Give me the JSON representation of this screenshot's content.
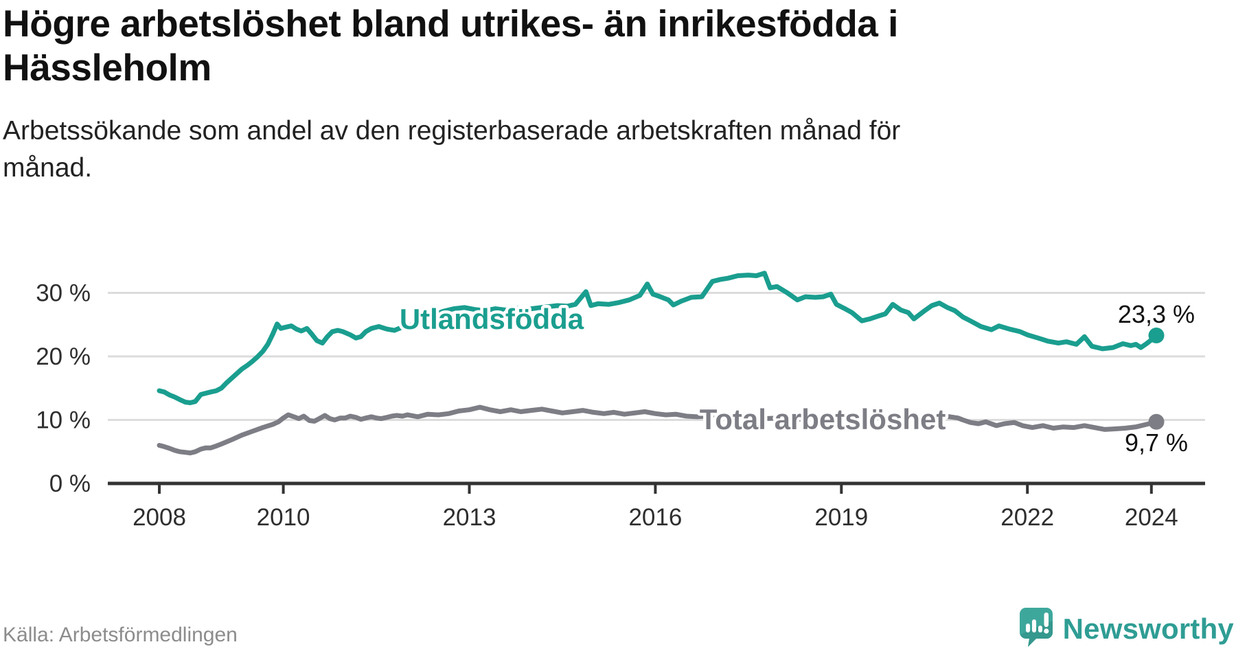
{
  "header": {
    "title_lines": [
      "Högre arbetslöshet bland utrikes- än inrikesfödda i",
      "Hässleholm"
    ],
    "subtitle_lines": [
      "Arbetssökande som andel av den registerbaserade arbetskraften månad för",
      "månad."
    ]
  },
  "footer": {
    "source": "Källa: Arbetsförmedlingen",
    "brand": "Newsworthy",
    "brand_color": "#2f9d94"
  },
  "chart_data": {
    "type": "line",
    "title": "Högre arbetslöshet bland utrikes- än inrikesfödda i Hässleholm",
    "xlabel": "",
    "ylabel": "",
    "unit": "%",
    "grid": "horizontal",
    "x_range": [
      2007.3,
      2024.9
    ],
    "y_range": [
      0,
      34
    ],
    "y_axis": {
      "ticks": [
        {
          "label": "30 %",
          "value": 30
        },
        {
          "label": "20 %",
          "value": 20
        },
        {
          "label": "10 %",
          "value": 10
        },
        {
          "label": "0 %",
          "value": 0
        }
      ]
    },
    "x_axis": {
      "ticks": [
        {
          "label": "2008",
          "year": 2008
        },
        {
          "label": "2010",
          "year": 2010
        },
        {
          "label": "2013",
          "year": 2013
        },
        {
          "label": "2016",
          "year": 2016
        },
        {
          "label": "2019",
          "year": 2019
        },
        {
          "label": "2022",
          "year": 2022
        },
        {
          "label": "2024",
          "year": 2024
        }
      ]
    },
    "series": [
      {
        "name": "Utlandsfödda",
        "color": "#1a9e8f",
        "end_label": "23,3 %",
        "end_value": 23.3,
        "points": [
          [
            2008.0,
            14.6
          ],
          [
            2008.08,
            14.4
          ],
          [
            2008.17,
            13.9
          ],
          [
            2008.25,
            13.6
          ],
          [
            2008.33,
            13.2
          ],
          [
            2008.42,
            12.8
          ],
          [
            2008.5,
            12.7
          ],
          [
            2008.58,
            12.9
          ],
          [
            2008.67,
            14.0
          ],
          [
            2008.75,
            14.2
          ],
          [
            2008.83,
            14.4
          ],
          [
            2008.92,
            14.6
          ],
          [
            2009.0,
            15.0
          ],
          [
            2009.08,
            15.8
          ],
          [
            2009.17,
            16.6
          ],
          [
            2009.25,
            17.3
          ],
          [
            2009.33,
            18.0
          ],
          [
            2009.42,
            18.6
          ],
          [
            2009.5,
            19.2
          ],
          [
            2009.58,
            19.9
          ],
          [
            2009.67,
            20.8
          ],
          [
            2009.75,
            21.9
          ],
          [
            2009.83,
            23.5
          ],
          [
            2009.9,
            25.1
          ],
          [
            2009.96,
            24.4
          ],
          [
            2010.04,
            24.6
          ],
          [
            2010.13,
            24.8
          ],
          [
            2010.21,
            24.3
          ],
          [
            2010.29,
            24.0
          ],
          [
            2010.38,
            24.4
          ],
          [
            2010.46,
            23.5
          ],
          [
            2010.54,
            22.5
          ],
          [
            2010.63,
            22.1
          ],
          [
            2010.71,
            23.1
          ],
          [
            2010.79,
            23.9
          ],
          [
            2010.88,
            24.1
          ],
          [
            2010.96,
            23.9
          ],
          [
            2011.08,
            23.4
          ],
          [
            2011.17,
            22.9
          ],
          [
            2011.25,
            23.1
          ],
          [
            2011.33,
            23.9
          ],
          [
            2011.42,
            24.4
          ],
          [
            2011.54,
            24.7
          ],
          [
            2011.67,
            24.3
          ],
          [
            2011.79,
            24.1
          ],
          [
            2011.92,
            24.6
          ],
          [
            2012.08,
            25.0
          ],
          [
            2012.25,
            25.7
          ],
          [
            2012.42,
            26.5
          ],
          [
            2012.58,
            27.1
          ],
          [
            2012.75,
            27.5
          ],
          [
            2012.92,
            27.7
          ],
          [
            2013.08,
            27.4
          ],
          [
            2013.25,
            27.2
          ],
          [
            2013.42,
            27.5
          ],
          [
            2013.58,
            27.3
          ],
          [
            2013.75,
            27.6
          ],
          [
            2013.92,
            27.4
          ],
          [
            2014.08,
            27.6
          ],
          [
            2014.25,
            27.8
          ],
          [
            2014.42,
            28.0
          ],
          [
            2014.58,
            27.9
          ],
          [
            2014.71,
            28.2
          ],
          [
            2014.88,
            30.2
          ],
          [
            2014.96,
            28.0
          ],
          [
            2015.08,
            28.3
          ],
          [
            2015.25,
            28.2
          ],
          [
            2015.42,
            28.5
          ],
          [
            2015.58,
            28.9
          ],
          [
            2015.75,
            29.6
          ],
          [
            2015.87,
            31.4
          ],
          [
            2015.96,
            29.8
          ],
          [
            2016.08,
            29.4
          ],
          [
            2016.21,
            28.9
          ],
          [
            2016.29,
            28.1
          ],
          [
            2016.42,
            28.7
          ],
          [
            2016.58,
            29.3
          ],
          [
            2016.75,
            29.4
          ],
          [
            2016.92,
            31.8
          ],
          [
            2017.04,
            32.1
          ],
          [
            2017.17,
            32.3
          ],
          [
            2017.33,
            32.7
          ],
          [
            2017.5,
            32.8
          ],
          [
            2017.63,
            32.7
          ],
          [
            2017.76,
            33.1
          ],
          [
            2017.85,
            30.8
          ],
          [
            2017.96,
            31.0
          ],
          [
            2018.13,
            30.0
          ],
          [
            2018.29,
            28.9
          ],
          [
            2018.42,
            29.4
          ],
          [
            2018.58,
            29.3
          ],
          [
            2018.71,
            29.4
          ],
          [
            2018.83,
            29.8
          ],
          [
            2018.92,
            28.2
          ],
          [
            2019.04,
            27.6
          ],
          [
            2019.17,
            26.9
          ],
          [
            2019.33,
            25.6
          ],
          [
            2019.46,
            25.9
          ],
          [
            2019.58,
            26.3
          ],
          [
            2019.71,
            26.7
          ],
          [
            2019.83,
            28.2
          ],
          [
            2019.96,
            27.3
          ],
          [
            2020.08,
            26.9
          ],
          [
            2020.17,
            25.9
          ],
          [
            2020.33,
            27.1
          ],
          [
            2020.46,
            28.0
          ],
          [
            2020.58,
            28.4
          ],
          [
            2020.71,
            27.7
          ],
          [
            2020.83,
            27.2
          ],
          [
            2020.96,
            26.2
          ],
          [
            2021.08,
            25.6
          ],
          [
            2021.25,
            24.7
          ],
          [
            2021.42,
            24.2
          ],
          [
            2021.54,
            24.8
          ],
          [
            2021.71,
            24.3
          ],
          [
            2021.88,
            23.9
          ],
          [
            2022.0,
            23.4
          ],
          [
            2022.17,
            22.9
          ],
          [
            2022.33,
            22.4
          ],
          [
            2022.5,
            22.1
          ],
          [
            2022.63,
            22.3
          ],
          [
            2022.79,
            21.9
          ],
          [
            2022.92,
            23.1
          ],
          [
            2023.04,
            21.6
          ],
          [
            2023.21,
            21.2
          ],
          [
            2023.38,
            21.4
          ],
          [
            2023.54,
            22.0
          ],
          [
            2023.67,
            21.7
          ],
          [
            2023.75,
            21.9
          ],
          [
            2023.83,
            21.4
          ],
          [
            2023.92,
            22.0
          ],
          [
            2024.0,
            22.6
          ],
          [
            2024.08,
            23.3
          ]
        ]
      },
      {
        "name": "Total arbetslöshet",
        "color": "#7d7d85",
        "end_label": "9,7 %",
        "end_value": 9.7,
        "points": [
          [
            2008.0,
            6.0
          ],
          [
            2008.08,
            5.8
          ],
          [
            2008.17,
            5.5
          ],
          [
            2008.25,
            5.2
          ],
          [
            2008.33,
            5.0
          ],
          [
            2008.42,
            4.9
          ],
          [
            2008.5,
            4.8
          ],
          [
            2008.58,
            5.0
          ],
          [
            2008.67,
            5.4
          ],
          [
            2008.75,
            5.6
          ],
          [
            2008.83,
            5.6
          ],
          [
            2008.92,
            5.9
          ],
          [
            2009.0,
            6.2
          ],
          [
            2009.17,
            6.9
          ],
          [
            2009.33,
            7.6
          ],
          [
            2009.5,
            8.2
          ],
          [
            2009.67,
            8.8
          ],
          [
            2009.83,
            9.3
          ],
          [
            2009.92,
            9.7
          ],
          [
            2010.0,
            10.3
          ],
          [
            2010.08,
            10.8
          ],
          [
            2010.17,
            10.5
          ],
          [
            2010.25,
            10.2
          ],
          [
            2010.33,
            10.6
          ],
          [
            2010.42,
            9.9
          ],
          [
            2010.5,
            9.8
          ],
          [
            2010.58,
            10.2
          ],
          [
            2010.67,
            10.7
          ],
          [
            2010.75,
            10.2
          ],
          [
            2010.83,
            10.0
          ],
          [
            2010.92,
            10.3
          ],
          [
            2011.0,
            10.3
          ],
          [
            2011.08,
            10.6
          ],
          [
            2011.17,
            10.4
          ],
          [
            2011.25,
            10.1
          ],
          [
            2011.33,
            10.3
          ],
          [
            2011.42,
            10.5
          ],
          [
            2011.5,
            10.3
          ],
          [
            2011.58,
            10.2
          ],
          [
            2011.67,
            10.4
          ],
          [
            2011.75,
            10.6
          ],
          [
            2011.83,
            10.7
          ],
          [
            2011.92,
            10.6
          ],
          [
            2012.0,
            10.8
          ],
          [
            2012.17,
            10.5
          ],
          [
            2012.33,
            10.9
          ],
          [
            2012.5,
            10.8
          ],
          [
            2012.67,
            11.0
          ],
          [
            2012.83,
            11.4
          ],
          [
            2013.0,
            11.6
          ],
          [
            2013.17,
            12.0
          ],
          [
            2013.33,
            11.6
          ],
          [
            2013.5,
            11.3
          ],
          [
            2013.67,
            11.6
          ],
          [
            2013.83,
            11.3
          ],
          [
            2014.0,
            11.5
          ],
          [
            2014.17,
            11.7
          ],
          [
            2014.33,
            11.4
          ],
          [
            2014.5,
            11.1
          ],
          [
            2014.67,
            11.3
          ],
          [
            2014.83,
            11.5
          ],
          [
            2015.0,
            11.2
          ],
          [
            2015.17,
            11.0
          ],
          [
            2015.33,
            11.2
          ],
          [
            2015.5,
            10.9
          ],
          [
            2015.67,
            11.1
          ],
          [
            2015.83,
            11.3
          ],
          [
            2016.0,
            11.0
          ],
          [
            2016.17,
            10.8
          ],
          [
            2016.33,
            10.9
          ],
          [
            2016.5,
            10.6
          ],
          [
            2016.67,
            10.5
          ],
          [
            2016.83,
            10.6
          ],
          [
            2017.0,
            10.5
          ],
          [
            2017.25,
            10.3
          ],
          [
            2017.5,
            10.4
          ],
          [
            2017.75,
            10.2
          ],
          [
            2018.0,
            10.3
          ],
          [
            2018.25,
            10.1
          ],
          [
            2018.5,
            10.2
          ],
          [
            2018.75,
            10.0
          ],
          [
            2019.0,
            10.1
          ],
          [
            2019.25,
            10.2
          ],
          [
            2019.5,
            10.3
          ],
          [
            2019.75,
            10.4
          ],
          [
            2020.0,
            10.3
          ],
          [
            2020.25,
            10.5
          ],
          [
            2020.5,
            10.7
          ],
          [
            2020.75,
            10.5
          ],
          [
            2020.88,
            10.3
          ],
          [
            2020.96,
            10.0
          ],
          [
            2021.08,
            9.6
          ],
          [
            2021.21,
            9.4
          ],
          [
            2021.33,
            9.7
          ],
          [
            2021.5,
            9.1
          ],
          [
            2021.63,
            9.4
          ],
          [
            2021.79,
            9.6
          ],
          [
            2021.92,
            9.1
          ],
          [
            2022.08,
            8.8
          ],
          [
            2022.25,
            9.1
          ],
          [
            2022.42,
            8.7
          ],
          [
            2022.58,
            8.9
          ],
          [
            2022.75,
            8.8
          ],
          [
            2022.92,
            9.1
          ],
          [
            2023.08,
            8.8
          ],
          [
            2023.25,
            8.5
          ],
          [
            2023.42,
            8.6
          ],
          [
            2023.58,
            8.7
          ],
          [
            2023.75,
            8.9
          ],
          [
            2023.92,
            9.3
          ],
          [
            2024.08,
            9.7
          ]
        ]
      }
    ]
  }
}
